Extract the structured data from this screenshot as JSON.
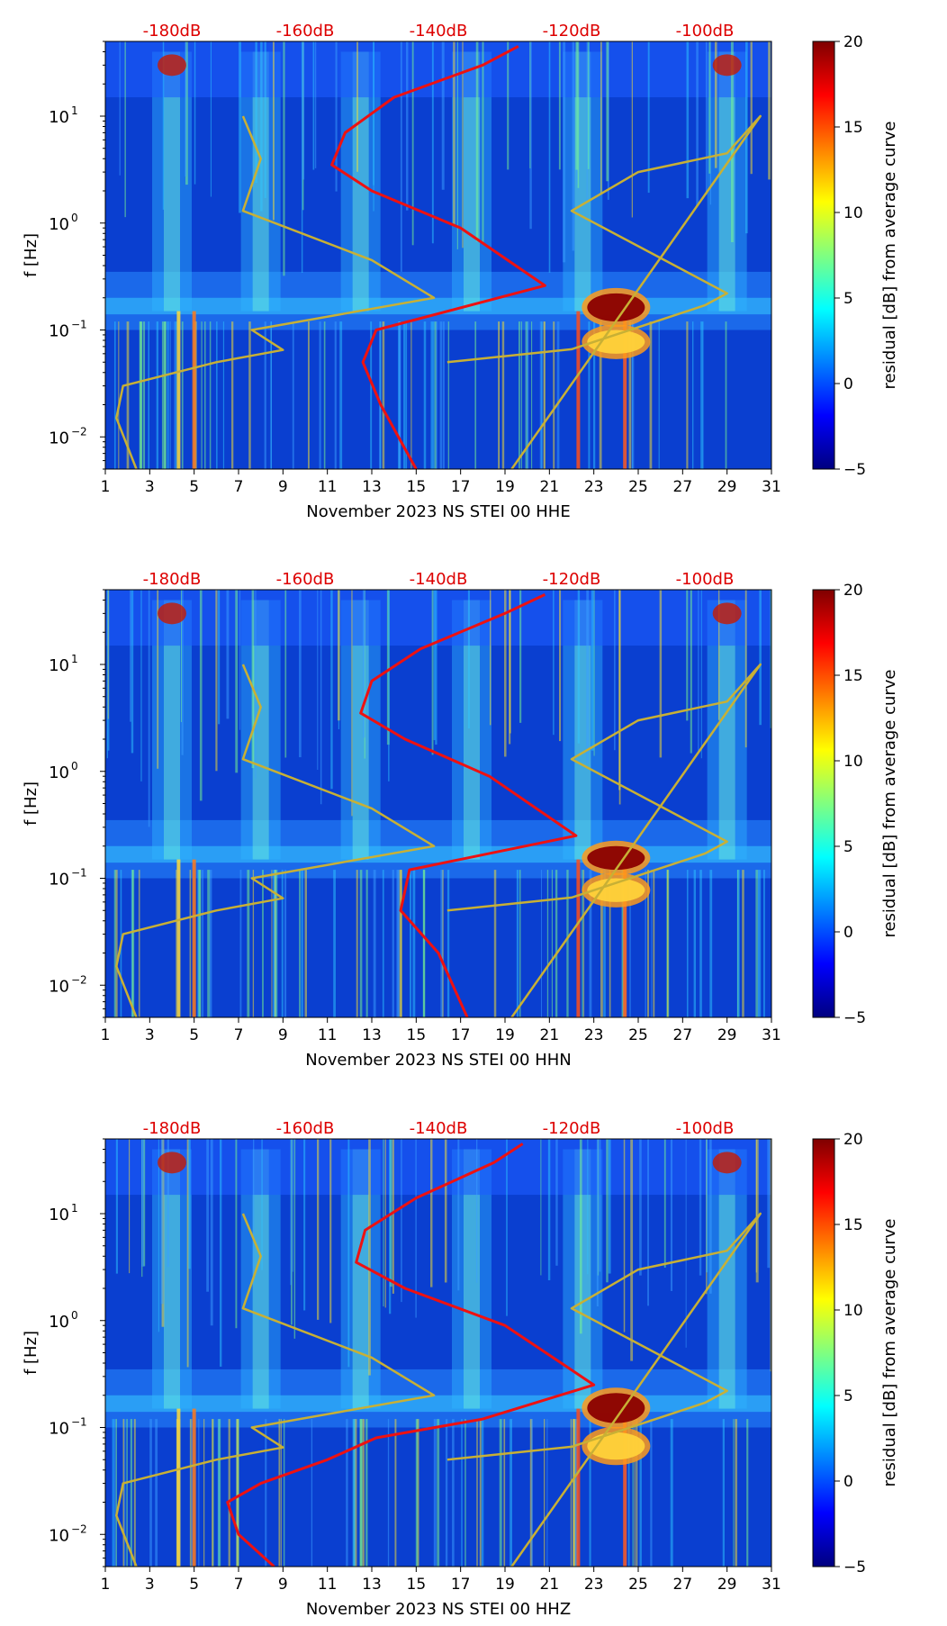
{
  "colorbar": {
    "label": "residual [dB] from average curve",
    "ticks": [
      20,
      15,
      10,
      5,
      0,
      -5
    ],
    "colormap": "jet",
    "stops": [
      "#00007f",
      "#0000ff",
      "#0080ff",
      "#00ffff",
      "#80ff80",
      "#ffff00",
      "#ff8000",
      "#ff0000",
      "#7f0000"
    ]
  },
  "colors": {
    "psd_curve": "#ee1111",
    "noise_model": "#c8b035",
    "db_labels": "#dd0000",
    "background_field": "#0a3fd0"
  },
  "chart_data": [
    {
      "type": "heatmap",
      "xlabel": "November 2023 NS STEI 00 HHE",
      "ylabel": "f [Hz]",
      "xticks": [
        "1",
        "3",
        "5",
        "7",
        "9",
        "11",
        "13",
        "15",
        "17",
        "19",
        "21",
        "23",
        "25",
        "27",
        "29",
        "31"
      ],
      "xlim": [
        1,
        31
      ],
      "yscale": "log",
      "ylim": [
        0.005,
        50
      ],
      "yticks": [
        {
          "value": 0.01,
          "base": "10",
          "exp": "−2"
        },
        {
          "value": 0.1,
          "base": "10",
          "exp": "−1"
        },
        {
          "value": 1,
          "base": "10",
          "exp": "0"
        },
        {
          "value": 10,
          "base": "10",
          "exp": "1"
        }
      ],
      "top_labels": [
        "-180dB",
        "-160dB",
        "-140dB",
        "-120dB",
        "-100dB"
      ],
      "top_label_days": [
        4,
        10,
        16,
        22,
        28
      ],
      "hot_bands": [
        {
          "day": 24,
          "fmin": 0.12,
          "fmax": 0.22
        },
        {
          "day": 24,
          "fmin": 0.06,
          "fmax": 0.1
        }
      ],
      "psd_curve": [
        [
          15,
          0.005
        ],
        [
          13.4,
          0.02
        ],
        [
          12.6,
          0.05
        ],
        [
          13.2,
          0.1
        ],
        [
          20.8,
          0.26
        ],
        [
          17,
          0.9
        ],
        [
          13,
          2
        ],
        [
          11.2,
          3.5
        ],
        [
          11.8,
          7
        ],
        [
          14,
          15
        ],
        [
          18,
          30
        ],
        [
          19.6,
          45
        ]
      ],
      "noise_model": [
        [
          2.4,
          0.005
        ],
        [
          1.5,
          0.015
        ],
        [
          1.8,
          0.03
        ],
        [
          6,
          0.05
        ],
        [
          9,
          0.065
        ],
        [
          7.6,
          0.1
        ],
        [
          15.8,
          0.2
        ],
        [
          13,
          0.45
        ],
        [
          7.2,
          1.3
        ],
        [
          8,
          4
        ],
        [
          7.2,
          10
        ],
        [
          16.4,
          0.05
        ],
        [
          22,
          0.066
        ],
        [
          28,
          0.17
        ],
        [
          29,
          0.22
        ],
        [
          22,
          1.3
        ],
        [
          25,
          3
        ],
        [
          29,
          4.5
        ],
        [
          30.5,
          10
        ],
        [
          19.3,
          0.005
        ]
      ]
    },
    {
      "type": "heatmap",
      "xlabel": "November 2023 NS STEI 00 HHN",
      "ylabel": "f [Hz]",
      "xticks": [
        "1",
        "3",
        "5",
        "7",
        "9",
        "11",
        "13",
        "15",
        "17",
        "19",
        "21",
        "23",
        "25",
        "27",
        "29",
        "31"
      ],
      "xlim": [
        1,
        31
      ],
      "yscale": "log",
      "ylim": [
        0.005,
        50
      ],
      "yticks": [
        {
          "value": 0.01,
          "base": "10",
          "exp": "−2"
        },
        {
          "value": 0.1,
          "base": "10",
          "exp": "−1"
        },
        {
          "value": 1,
          "base": "10",
          "exp": "0"
        },
        {
          "value": 10,
          "base": "10",
          "exp": "1"
        }
      ],
      "top_labels": [
        "-180dB",
        "-160dB",
        "-140dB",
        "-120dB",
        "-100dB"
      ],
      "top_label_days": [
        4,
        10,
        16,
        22,
        28
      ],
      "hot_bands": [
        {
          "day": 24,
          "fmin": 0.12,
          "fmax": 0.2
        },
        {
          "day": 24,
          "fmin": 0.06,
          "fmax": 0.1
        }
      ],
      "psd_curve": [
        [
          17.3,
          0.005
        ],
        [
          16,
          0.02
        ],
        [
          14.3,
          0.05
        ],
        [
          14.7,
          0.12
        ],
        [
          22.2,
          0.25
        ],
        [
          18.3,
          0.9
        ],
        [
          14.5,
          2
        ],
        [
          12.5,
          3.5
        ],
        [
          13,
          7
        ],
        [
          15.2,
          14
        ],
        [
          19,
          30
        ],
        [
          20.8,
          45
        ]
      ],
      "noise_model": [
        [
          2.4,
          0.005
        ],
        [
          1.5,
          0.015
        ],
        [
          1.8,
          0.03
        ],
        [
          6,
          0.05
        ],
        [
          9,
          0.065
        ],
        [
          7.6,
          0.1
        ],
        [
          15.8,
          0.2
        ],
        [
          13,
          0.45
        ],
        [
          7.2,
          1.3
        ],
        [
          8,
          4
        ],
        [
          7.2,
          10
        ],
        [
          16.4,
          0.05
        ],
        [
          22,
          0.066
        ],
        [
          28,
          0.17
        ],
        [
          29,
          0.22
        ],
        [
          22,
          1.3
        ],
        [
          25,
          3
        ],
        [
          29,
          4.5
        ],
        [
          30.5,
          10
        ],
        [
          19.3,
          0.005
        ]
      ]
    },
    {
      "type": "heatmap",
      "xlabel": "November 2023 NS STEI 00 HHZ",
      "ylabel": "f [Hz]",
      "xticks": [
        "1",
        "3",
        "5",
        "7",
        "9",
        "11",
        "13",
        "15",
        "17",
        "19",
        "21",
        "23",
        "25",
        "27",
        "29",
        "31"
      ],
      "xlim": [
        1,
        31
      ],
      "yscale": "log",
      "ylim": [
        0.005,
        50
      ],
      "yticks": [
        {
          "value": 0.01,
          "base": "10",
          "exp": "−2"
        },
        {
          "value": 0.1,
          "base": "10",
          "exp": "−1"
        },
        {
          "value": 1,
          "base": "10",
          "exp": "0"
        },
        {
          "value": 10,
          "base": "10",
          "exp": "1"
        }
      ],
      "top_labels": [
        "-180dB",
        "-160dB",
        "-140dB",
        "-120dB",
        "-100dB"
      ],
      "top_label_days": [
        4,
        10,
        16,
        22,
        28
      ],
      "hot_bands": [
        {
          "day": 24,
          "fmin": 0.11,
          "fmax": 0.21
        },
        {
          "day": 24,
          "fmin": 0.05,
          "fmax": 0.09
        }
      ],
      "psd_curve": [
        [
          8.6,
          0.005
        ],
        [
          7,
          0.01
        ],
        [
          6.5,
          0.02
        ],
        [
          8,
          0.03
        ],
        [
          11,
          0.05
        ],
        [
          13.2,
          0.08
        ],
        [
          18,
          0.12
        ],
        [
          23,
          0.25
        ],
        [
          19,
          0.9
        ],
        [
          14.5,
          2
        ],
        [
          12.3,
          3.5
        ],
        [
          12.7,
          7
        ],
        [
          15,
          14
        ],
        [
          18.5,
          30
        ],
        [
          19.8,
          45
        ]
      ],
      "noise_model": [
        [
          2.4,
          0.005
        ],
        [
          1.5,
          0.015
        ],
        [
          1.8,
          0.03
        ],
        [
          6,
          0.05
        ],
        [
          9,
          0.065
        ],
        [
          7.6,
          0.1
        ],
        [
          15.8,
          0.2
        ],
        [
          13,
          0.45
        ],
        [
          7.2,
          1.3
        ],
        [
          8,
          4
        ],
        [
          7.2,
          10
        ],
        [
          16.4,
          0.05
        ],
        [
          22,
          0.066
        ],
        [
          28,
          0.17
        ],
        [
          29,
          0.22
        ],
        [
          22,
          1.3
        ],
        [
          25,
          3
        ],
        [
          29,
          4.5
        ],
        [
          30.5,
          10
        ],
        [
          19.3,
          0.005
        ]
      ]
    }
  ]
}
